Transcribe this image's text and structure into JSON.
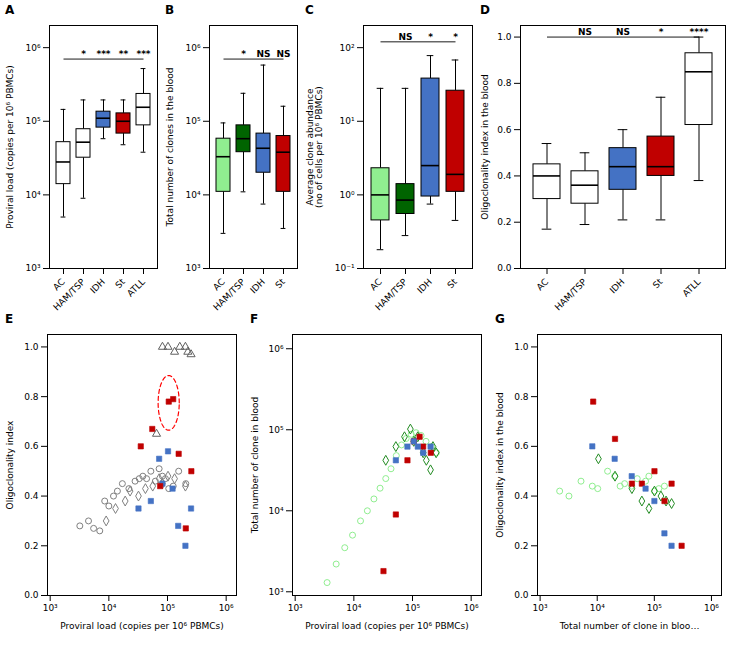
{
  "chart_data": [
    {
      "type": "box",
      "title": "A",
      "categories": [
        "AC",
        "HAM/TSP",
        "IDH",
        "St",
        "ATLL"
      ],
      "colors": [
        "white",
        "white",
        "#4472C4",
        "#C00000",
        "white"
      ],
      "medians": [
        28000,
        52000,
        110000,
        100000,
        155000
      ],
      "q1": [
        14000,
        32000,
        82000,
        68000,
        88000
      ],
      "q3": [
        52000,
        78000,
        135000,
        128000,
        235000
      ],
      "whisker_lo": [
        5000,
        9000,
        58000,
        48000,
        38000
      ],
      "whisker_hi": [
        145000,
        195000,
        195000,
        195000,
        520000
      ],
      "ylabel": "Proviral load (copies per 10⁶ PBMCs)",
      "log": "y",
      "ylim": [
        1000,
        2000000
      ],
      "yticks": [
        {
          "value": 1000,
          "label": "10³"
        },
        {
          "value": 10000,
          "label": "10⁴"
        },
        {
          "value": 100000,
          "label": "10⁵"
        },
        {
          "value": 1000000,
          "label": "10⁶"
        }
      ],
      "annotations": [
        {
          "type": "bracket",
          "from": "AC",
          "to": "ATLL",
          "y": 700000,
          "labels": [
            {
              "category": "HAM/TSP",
              "text": "*"
            },
            {
              "category": "IDH",
              "text": "***"
            },
            {
              "category": "St",
              "text": "**"
            },
            {
              "category": "ATLL",
              "text": "***"
            }
          ]
        }
      ]
    },
    {
      "type": "box",
      "title": "B",
      "categories": [
        "AC",
        "HAM/TSP",
        "IDH",
        "St"
      ],
      "colors": [
        "#90EE90",
        "#006400",
        "#4472C4",
        "#C00000"
      ],
      "medians": [
        33000,
        58000,
        43000,
        38000
      ],
      "q1": [
        11000,
        38000,
        20000,
        11000
      ],
      "q3": [
        58000,
        88000,
        68000,
        63000
      ],
      "whisker_lo": [
        3000,
        11000,
        7500,
        3500
      ],
      "whisker_hi": [
        95000,
        240000,
        580000,
        160000
      ],
      "ylabel": "Total number of clones in the blood",
      "log": "y",
      "ylim": [
        1000,
        2000000
      ],
      "yticks": [
        {
          "value": 1000,
          "label": "10³"
        },
        {
          "value": 10000,
          "label": "10⁴"
        },
        {
          "value": 100000,
          "label": "10⁵"
        },
        {
          "value": 1000000,
          "label": "10⁶"
        }
      ],
      "annotations": [
        {
          "type": "bracket",
          "from": "AC",
          "to": "St",
          "y": 700000,
          "labels": [
            {
              "category": "HAM/TSP",
              "text": "*"
            },
            {
              "category": "IDH",
              "text": "NS"
            },
            {
              "category": "St",
              "text": "NS"
            }
          ]
        }
      ]
    },
    {
      "type": "box",
      "title": "C",
      "categories": [
        "AC",
        "HAM/TSP",
        "IDH",
        "St"
      ],
      "colors": [
        "#90EE90",
        "#006400",
        "#4472C4",
        "#C00000"
      ],
      "medians": [
        1.0,
        0.85,
        2.5,
        1.9
      ],
      "q1": [
        0.45,
        0.55,
        0.95,
        1.1
      ],
      "q3": [
        2.3,
        1.4,
        38.0,
        26.0
      ],
      "whisker_lo": [
        0.18,
        0.28,
        0.75,
        0.45
      ],
      "whisker_hi": [
        28.0,
        28.0,
        78.0,
        68.0
      ],
      "ylabel": "Average clone abundance\n(no of cells per 10⁶ PBMCs)",
      "log": "y",
      "ylim": [
        0.1,
        200
      ],
      "yticks": [
        {
          "value": 0.1,
          "label": "10⁻¹"
        },
        {
          "value": 1,
          "label": "10⁰"
        },
        {
          "value": 10,
          "label": "10¹"
        },
        {
          "value": 100,
          "label": "10²"
        }
      ],
      "annotations": [
        {
          "type": "bracket",
          "from": "AC",
          "to": "St",
          "y": 120,
          "labels": [
            {
              "category": "HAM/TSP",
              "text": "NS"
            },
            {
              "category": "IDH",
              "text": "*"
            },
            {
              "category": "St",
              "text": "*"
            }
          ]
        }
      ]
    },
    {
      "type": "box",
      "title": "D",
      "categories": [
        "AC",
        "HAM/TSP",
        "IDH",
        "St",
        "ATLL"
      ],
      "colors": [
        "white",
        "white",
        "#4472C4",
        "#C00000",
        "white"
      ],
      "medians": [
        0.4,
        0.36,
        0.44,
        0.44,
        0.85
      ],
      "q1": [
        0.3,
        0.28,
        0.34,
        0.4,
        0.62
      ],
      "q3": [
        0.45,
        0.42,
        0.52,
        0.57,
        0.93
      ],
      "whisker_lo": [
        0.17,
        0.19,
        0.21,
        0.21,
        0.38
      ],
      "whisker_hi": [
        0.54,
        0.5,
        0.6,
        0.74,
        1.0
      ],
      "ylabel": "Oligoclonality index in the blood",
      "ylim": [
        0,
        1.05
      ],
      "yticks": [
        {
          "value": 0,
          "label": "0.0"
        },
        0.2,
        0.4,
        0.6,
        0.8,
        {
          "value": 1,
          "label": "1.0"
        }
      ],
      "annotations": [
        {
          "type": "bracket",
          "from": "AC",
          "to": "ATLL",
          "y": 1.0,
          "labels": [
            {
              "category": "HAM/TSP",
              "text": "NS"
            },
            {
              "category": "IDH",
              "text": "NS"
            },
            {
              "category": "St",
              "text": "*"
            },
            {
              "category": "ATLL",
              "text": "****"
            }
          ]
        }
      ]
    },
    {
      "type": "scatter",
      "title": "E",
      "xlabel": "Proviral load (copies per 10⁶ PBMCs)",
      "ylabel": "Oligoclonality index",
      "log": "x",
      "xlim": [
        900,
        1500000
      ],
      "xticks": [
        {
          "value": 1000,
          "label": "10³"
        },
        {
          "value": 10000,
          "label": "10⁴"
        },
        {
          "value": 100000,
          "label": "10⁵"
        },
        {
          "value": 1000000,
          "label": "10⁶"
        }
      ],
      "ylim": [
        0,
        1.05
      ],
      "yticks": [
        {
          "value": 0,
          "label": "0.0"
        },
        0.2,
        0.4,
        0.6,
        0.8,
        {
          "value": 1,
          "label": "1.0"
        }
      ],
      "series": [
        {
          "color": "#808080",
          "marker": "open_circle",
          "x": [
            3200,
            4500,
            5500,
            7000,
            8500,
            10000,
            12000,
            14000,
            17000,
            22000,
            28000,
            33000,
            38000,
            44000,
            52000,
            62000,
            72000,
            82000,
            92000,
            105000,
            125000,
            155000,
            205000
          ],
          "values": [
            0.28,
            0.3,
            0.27,
            0.26,
            0.38,
            0.36,
            0.4,
            0.42,
            0.45,
            0.43,
            0.46,
            0.47,
            0.48,
            0.47,
            0.5,
            0.46,
            0.51,
            0.48,
            0.47,
            0.43,
            0.44,
            0.5,
            0.45
          ]
        },
        {
          "color": "#808080",
          "marker": "open_diamond",
          "x": [
            9000,
            13000,
            19000,
            23000,
            32000,
            42000,
            56000,
            72000,
            82000,
            102000,
            132000,
            202000
          ],
          "values": [
            0.3,
            0.35,
            0.38,
            0.42,
            0.4,
            0.43,
            0.44,
            0.47,
            0.45,
            0.48,
            0.47,
            0.44
          ]
        },
        {
          "color": "#4472C4",
          "marker": "square",
          "x": [
            32000,
            52000,
            72000,
            82000,
            102000,
            122000,
            152000,
            202000,
            252000
          ],
          "values": [
            0.35,
            0.38,
            0.55,
            0.45,
            0.58,
            0.43,
            0.28,
            0.2,
            0.35
          ]
        },
        {
          "color": "#C00000",
          "marker": "square",
          "x": [
            35000,
            55000,
            75000,
            105000,
            125000,
            155000,
            205000,
            255000
          ],
          "values": [
            0.6,
            0.67,
            0.44,
            0.78,
            0.79,
            0.57,
            0.27,
            0.5
          ]
        },
        {
          "color": "#606060",
          "marker": "open_triangle",
          "x": [
            65000,
            82000,
            102000,
            132000,
            162000,
            202000,
            222000,
            252000
          ],
          "values": [
            0.65,
            1.0,
            1.0,
            0.98,
            1.0,
            1.0,
            0.98,
            0.97
          ]
        }
      ],
      "annotations": [
        {
          "type": "ellipse",
          "center_log10_x": 5.02,
          "center_y": 0.775,
          "radius_log10_x": 0.18,
          "radius_y": 0.11,
          "color": "red",
          "line_style": "dashed"
        }
      ]
    },
    {
      "type": "scatter",
      "title": "F",
      "xlabel": "Proviral load (copies per 10⁶ PBMCs)",
      "ylabel": "Total number of clone in blood",
      "log": true,
      "xlim": [
        900,
        1500000
      ],
      "xticks": [
        {
          "value": 1000,
          "label": "10³"
        },
        {
          "value": 10000,
          "label": "10⁴"
        },
        {
          "value": 100000,
          "label": "10⁵"
        },
        {
          "value": 1000000,
          "label": "10⁶"
        }
      ],
      "ylim": [
        900,
        1500000
      ],
      "yticks": [
        {
          "value": 1000,
          "label": "10³"
        },
        {
          "value": 10000,
          "label": "10⁴"
        },
        {
          "value": 100000,
          "label": "10⁵"
        },
        {
          "value": 1000000,
          "label": "10⁶"
        }
      ],
      "series": [
        {
          "color": "#90EE90",
          "marker": "open_circle",
          "x": [
            3500,
            5000,
            7000,
            9500,
            13000,
            17000,
            22000,
            28000,
            35000,
            43000,
            53000,
            65000,
            78000,
            95000,
            115000,
            140000,
            170000,
            210000,
            255000
          ],
          "values": [
            1300,
            2200,
            3500,
            5000,
            7500,
            10000,
            14000,
            19000,
            25000,
            33000,
            48000,
            65000,
            78000,
            88000,
            92000,
            85000,
            72000,
            62000,
            52000
          ]
        },
        {
          "color": "#228B22",
          "marker": "open_diamond",
          "x": [
            35000,
            52000,
            73000,
            92000,
            105000,
            123000,
            152000,
            172000,
            203000,
            223000,
            253000
          ],
          "values": [
            42000,
            62000,
            82000,
            102000,
            72000,
            82000,
            52000,
            42000,
            32000,
            62000,
            52000
          ]
        },
        {
          "color": "#C00000",
          "marker": "square",
          "x": [
            32000,
            52000,
            82000,
            105000,
            132000,
            152000,
            205000
          ],
          "values": [
            1800,
            9000,
            42000,
            72000,
            82000,
            62000,
            52000
          ]
        },
        {
          "color": "#4472C4",
          "marker": "square",
          "x": [
            52000,
            82000,
            105000,
            123000,
            152000,
            203000
          ],
          "values": [
            42000,
            62000,
            72000,
            62000,
            52000,
            62000
          ]
        }
      ]
    },
    {
      "type": "scatter",
      "title": "G",
      "xlabel": "Total number of clone in bloo…",
      "ylabel": "Oligoclonality index in the blood",
      "log": "x",
      "xlim": [
        900,
        1500000
      ],
      "xticks": [
        {
          "value": 1000,
          "label": "10³"
        },
        {
          "value": 10000,
          "label": "10⁴"
        },
        {
          "value": 100000,
          "label": "10⁵"
        },
        {
          "value": 1000000,
          "label": "10⁶"
        }
      ],
      "ylim": [
        0,
        1.05
      ],
      "yticks": [
        {
          "value": 0,
          "label": "0.0"
        },
        0.2,
        0.4,
        0.6,
        0.8,
        {
          "value": 1,
          "label": "1.0"
        }
      ],
      "series": [
        {
          "color": "#90EE90",
          "marker": "open_circle",
          "x": [
            2200,
            3200,
            5200,
            8200,
            10200,
            15200,
            20200,
            25200,
            30200,
            40200,
            50200,
            70200,
            80200,
            100200,
            120200,
            150200
          ],
          "values": [
            0.42,
            0.4,
            0.46,
            0.44,
            0.43,
            0.5,
            0.48,
            0.44,
            0.45,
            0.44,
            0.47,
            0.46,
            0.48,
            0.42,
            0.43,
            0.44
          ]
        },
        {
          "color": "#228B22",
          "marker": "open_diamond",
          "x": [
            10500,
            20500,
            40500,
            60500,
            80500,
            100500,
            130500,
            160500,
            200500
          ],
          "values": [
            0.55,
            0.48,
            0.43,
            0.38,
            0.35,
            0.42,
            0.4,
            0.38,
            0.37
          ]
        },
        {
          "color": "#C00000",
          "marker": "square",
          "x": [
            8500,
            20500,
            40500,
            60500,
            100500,
            150500,
            200500,
            300500
          ],
          "values": [
            0.78,
            0.63,
            0.45,
            0.45,
            0.5,
            0.38,
            0.45,
            0.2
          ]
        },
        {
          "color": "#4472C4",
          "marker": "square",
          "x": [
            8200,
            20200,
            40200,
            70200,
            100200,
            150200,
            200200
          ],
          "values": [
            0.6,
            0.55,
            0.48,
            0.43,
            0.38,
            0.25,
            0.2
          ]
        }
      ]
    }
  ]
}
